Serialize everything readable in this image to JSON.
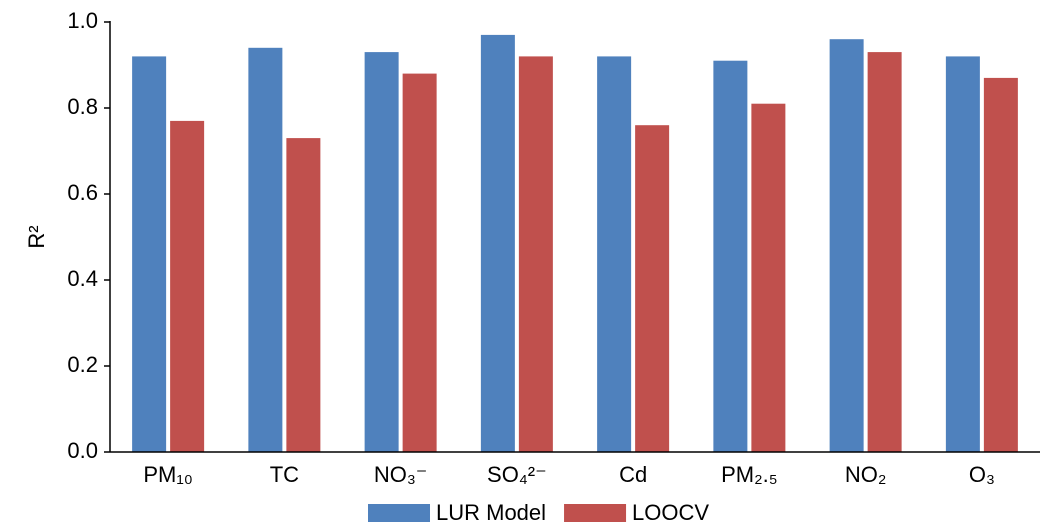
{
  "chart_data": {
    "type": "bar",
    "y_label": "R²",
    "categories": [
      "PM₁₀",
      "TC",
      "NO₃⁻",
      "SO₄²⁻",
      "Cd",
      "PM₂.₅",
      "NO₂",
      "O₃"
    ],
    "series": [
      {
        "name": "LUR Model",
        "color": "#4f81bd",
        "values": [
          0.92,
          0.94,
          0.93,
          0.97,
          0.92,
          0.91,
          0.96,
          0.92
        ]
      },
      {
        "name": "LOOCV",
        "color": "#c0504d",
        "values": [
          0.77,
          0.73,
          0.88,
          0.92,
          0.76,
          0.81,
          0.93,
          0.87
        ]
      }
    ],
    "ylim": [
      0,
      1
    ],
    "yticks": [
      {
        "value": 0,
        "label": "0.0"
      },
      {
        "value": 0.2,
        "label": "0.2"
      },
      {
        "value": 0.4,
        "label": "0.4"
      },
      {
        "value": 0.6,
        "label": "0.6"
      },
      {
        "value": 0.8,
        "label": "0.8"
      },
      {
        "value": 1,
        "label": "1.0"
      }
    ],
    "grid": false,
    "legend": "bottom"
  }
}
